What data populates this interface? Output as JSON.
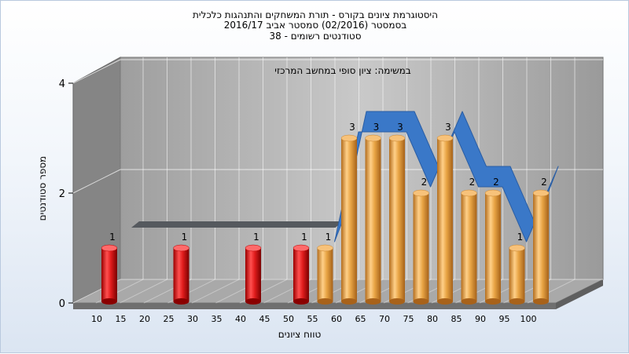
{
  "titles": [
    "היסטוגרמת ציונים בקורס - תורת המשחקים והתנהגות כלכלית",
    "בסמסטר (02/2016) סמסטר אביב 2016/17",
    "סטודנטים רשומים - 38"
  ],
  "chart_data": {
    "type": "bar",
    "annotation": "במשימה: ציון סופי במחשב המרכזי",
    "xlabel": "טווח ציונים",
    "ylabel": "מספר סטודנטים",
    "x_ticks": [
      "10",
      "15",
      "20",
      "25",
      "30",
      "35",
      "40",
      "45",
      "50",
      "55",
      "60",
      "65",
      "70",
      "75",
      "80",
      "85",
      "90",
      "95",
      "100"
    ],
    "y_ticks": [
      0,
      2,
      4
    ],
    "ylim": [
      0,
      4
    ],
    "grid": true,
    "bars": [
      {
        "x": 10,
        "value": 1,
        "group": "fail"
      },
      {
        "x": 25,
        "value": 1,
        "group": "fail"
      },
      {
        "x": 40,
        "value": 1,
        "group": "fail"
      },
      {
        "x": 50,
        "value": 1,
        "group": "fail"
      },
      {
        "x": 55,
        "value": 1,
        "group": "pass"
      },
      {
        "x": 60,
        "value": 3,
        "group": "pass"
      },
      {
        "x": 65,
        "value": 3,
        "group": "pass"
      },
      {
        "x": 70,
        "value": 3,
        "group": "pass"
      },
      {
        "x": 75,
        "value": 2,
        "group": "pass"
      },
      {
        "x": 80,
        "value": 3,
        "group": "pass"
      },
      {
        "x": 85,
        "value": 2,
        "group": "pass"
      },
      {
        "x": 90,
        "value": 2,
        "group": "pass"
      },
      {
        "x": 95,
        "value": 1,
        "group": "pass"
      },
      {
        "x": 100,
        "value": 2,
        "group": "pass"
      }
    ],
    "colors": {
      "fail": "#e01c1c",
      "pass": "#e8a444",
      "ribbon_fail": "#55595e",
      "ribbon_pass": "#3a78c8",
      "plot_back": "#bcbcbc",
      "plot_side": "#858585",
      "plot_floor": "#a9a9a9"
    }
  }
}
